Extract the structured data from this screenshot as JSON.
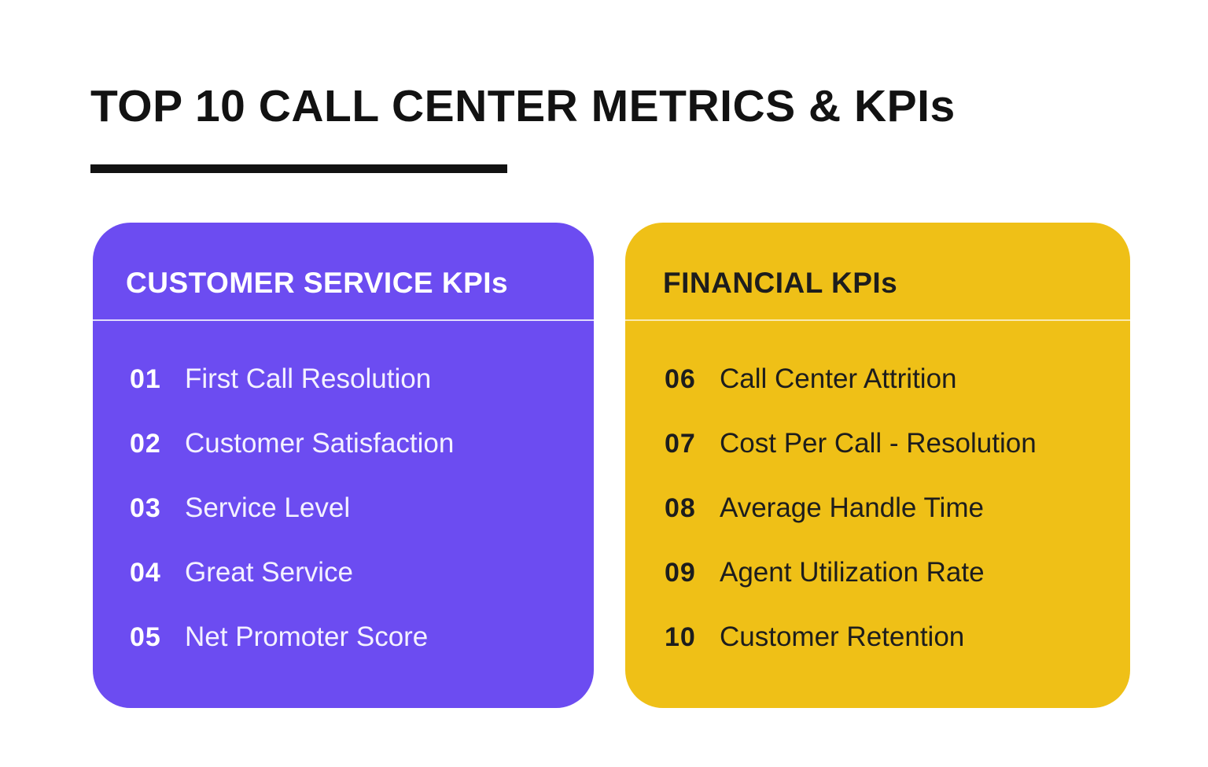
{
  "title": "TOP 10 CALL CENTER METRICS & KPIs",
  "colors": {
    "background": "#ffffff",
    "title_text": "#121212",
    "title_underline": "#121212",
    "customer_card_bg": "#6C4CF1",
    "customer_card_text": "#ffffff",
    "financial_card_bg": "#EFC017",
    "financial_card_text": "#1d1d1d"
  },
  "cards": [
    {
      "title": "CUSTOMER SERVICE KPIs",
      "items": [
        {
          "number": "01",
          "label": "First Call Resolution"
        },
        {
          "number": "02",
          "label": "Customer Satisfaction"
        },
        {
          "number": "03",
          "label": "Service Level"
        },
        {
          "number": "04",
          "label": "Great Service"
        },
        {
          "number": "05",
          "label": "Net Promoter Score"
        }
      ]
    },
    {
      "title": "FINANCIAL KPIs",
      "items": [
        {
          "number": "06",
          "label": "Call Center Attrition"
        },
        {
          "number": "07",
          "label": "Cost Per Call - Resolution"
        },
        {
          "number": "08",
          "label": "Average Handle Time"
        },
        {
          "number": "09",
          "label": "Agent Utilization Rate"
        },
        {
          "number": "10",
          "label": "Customer Retention"
        }
      ]
    }
  ]
}
